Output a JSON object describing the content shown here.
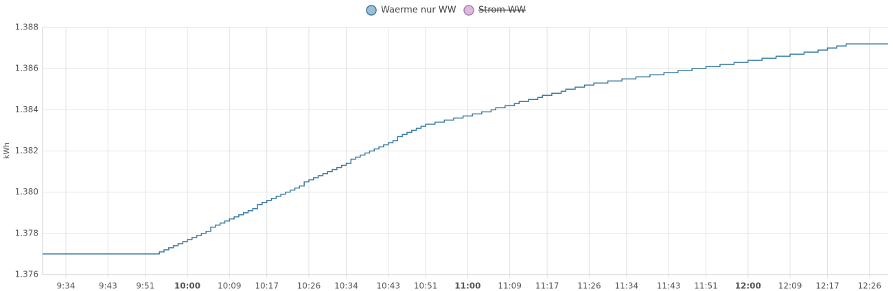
{
  "chart_data": {
    "type": "step-line",
    "y_label": "kWh",
    "series": [
      {
        "name": "Waerme nur WW",
        "color": "#3a7ca5",
        "hidden": false,
        "x": [
          "9:29",
          "9:54",
          "9:55",
          "9:56",
          "9:57",
          "9:58",
          "9:59",
          "10:00",
          "10:01",
          "10:02",
          "10:03",
          "10:04",
          "10:05",
          "10:05",
          "10:06",
          "10:07",
          "10:08",
          "10:09",
          "10:10",
          "10:11",
          "10:12",
          "10:13",
          "10:14",
          "10:15",
          "10:15",
          "10:16",
          "10:17",
          "10:18",
          "10:19",
          "10:20",
          "10:21",
          "10:22",
          "10:23",
          "10:24",
          "10:25",
          "10:25",
          "10:26",
          "10:27",
          "10:28",
          "10:29",
          "10:30",
          "10:31",
          "10:32",
          "10:33",
          "10:34",
          "10:35",
          "10:35",
          "10:36",
          "10:37",
          "10:38",
          "10:39",
          "10:40",
          "10:41",
          "10:42",
          "10:43",
          "10:44",
          "10:45",
          "10:45",
          "10:46",
          "10:47",
          "10:48",
          "10:49",
          "10:50",
          "10:51",
          "10:53",
          "10:55",
          "10:57",
          "10:59",
          "11:01",
          "11:03",
          "11:05",
          "11:06",
          "11:08",
          "11:10",
          "11:11",
          "11:13",
          "11:15",
          "11:16",
          "11:18",
          "11:20",
          "11:21",
          "11:23",
          "11:25",
          "11:27",
          "11:30",
          "11:33",
          "11:36",
          "11:39",
          "11:42",
          "11:45",
          "11:48",
          "11:51",
          "11:54",
          "11:57",
          "12:00",
          "12:03",
          "12:06",
          "12:09",
          "12:12",
          "12:15",
          "12:17",
          "12:19",
          "12:21",
          "12:30"
        ],
        "values": [
          1.377,
          1.3771,
          1.3772,
          1.3773,
          1.3774,
          1.3775,
          1.3776,
          1.3777,
          1.3778,
          1.3779,
          1.378,
          1.3781,
          1.3782,
          1.3783,
          1.3784,
          1.3785,
          1.3786,
          1.3787,
          1.3788,
          1.3789,
          1.379,
          1.3791,
          1.3792,
          1.3793,
          1.3794,
          1.3795,
          1.3796,
          1.3797,
          1.3798,
          1.3799,
          1.38,
          1.3801,
          1.3802,
          1.3803,
          1.3804,
          1.3805,
          1.3806,
          1.3807,
          1.3808,
          1.3809,
          1.381,
          1.3811,
          1.3812,
          1.3813,
          1.3814,
          1.3815,
          1.3816,
          1.3817,
          1.3818,
          1.3819,
          1.382,
          1.3821,
          1.3822,
          1.3823,
          1.3824,
          1.3825,
          1.3826,
          1.3827,
          1.3828,
          1.3829,
          1.383,
          1.3831,
          1.3832,
          1.3833,
          1.3834,
          1.3835,
          1.3836,
          1.3837,
          1.3838,
          1.3839,
          1.384,
          1.3841,
          1.3842,
          1.3843,
          1.3844,
          1.3845,
          1.3846,
          1.3847,
          1.3848,
          1.3849,
          1.385,
          1.3851,
          1.3852,
          1.3853,
          1.3854,
          1.3855,
          1.3856,
          1.3857,
          1.3858,
          1.3859,
          1.386,
          1.3861,
          1.3862,
          1.3863,
          1.3864,
          1.3865,
          1.3866,
          1.3867,
          1.3868,
          1.3869,
          1.387,
          1.3871,
          1.3872,
          1.3872
        ]
      },
      {
        "name": "Strom WW",
        "color": "#b27ab2",
        "hidden": true,
        "x": [],
        "values": []
      }
    ],
    "xlim": [
      "9:29",
      "12:30"
    ],
    "xticks": [
      "9:34",
      "9:43",
      "9:51",
      "10:00",
      "10:09",
      "10:17",
      "10:26",
      "10:34",
      "10:43",
      "10:51",
      "11:00",
      "11:09",
      "11:17",
      "11:26",
      "11:34",
      "11:43",
      "11:51",
      "12:00",
      "12:09",
      "12:17",
      "12:26"
    ],
    "ylim": [
      1.376,
      1.388
    ],
    "yticks": [
      1.376,
      1.378,
      {
        "value": 1.38,
        "label": "1.380"
      },
      1.382,
      1.384,
      1.386,
      1.388
    ],
    "grid": true
  }
}
